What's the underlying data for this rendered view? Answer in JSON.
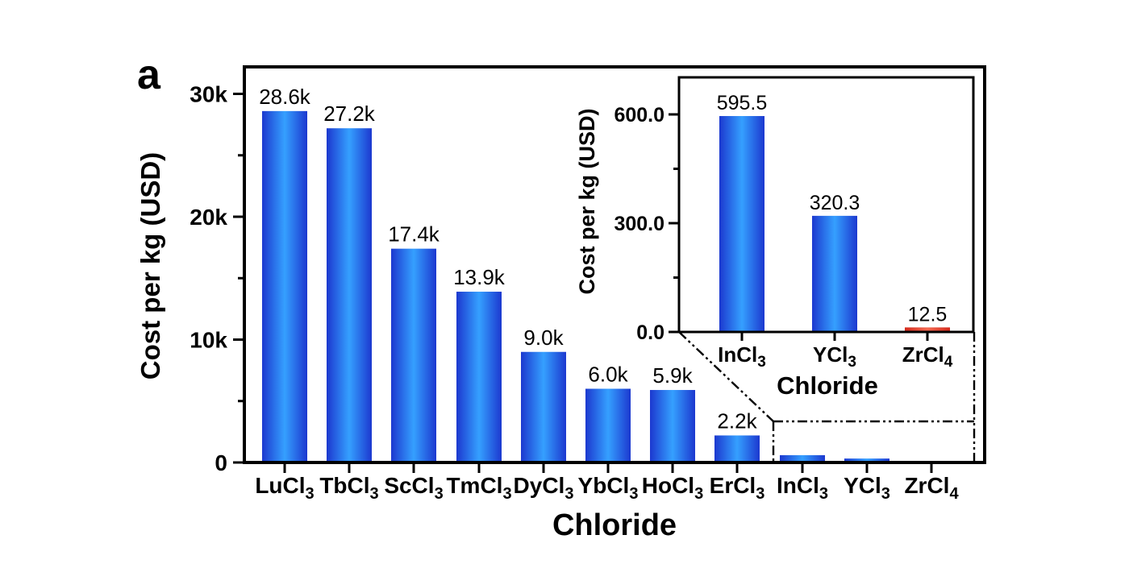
{
  "panel_label": "a",
  "colors": {
    "bar_blue_edge": "#1c38cf",
    "bar_blue_mid": "#35a0ff",
    "bar_red_edge": "#d42a1c",
    "bar_red_mid": "#f46a52",
    "label_blue": "#2847d8",
    "label_red": "#e53b2c",
    "axis_black": "#000000"
  },
  "chart_data": [
    {
      "id": "main",
      "type": "bar",
      "title": "",
      "xlabel": "Chloride",
      "ylabel": "Cost per kg (USD)",
      "ylim": [
        0,
        32200
      ],
      "grid": "off",
      "yticks": [
        {
          "value": 0,
          "label": "0"
        },
        {
          "value": 10000,
          "label": "10k"
        },
        {
          "value": 20000,
          "label": "20k"
        },
        {
          "value": 30000,
          "label": "30k"
        }
      ],
      "minor_yticks": [
        5000,
        15000,
        25000
      ],
      "categories": [
        {
          "base": "LuCl",
          "sub": "3",
          "label_color": "blue"
        },
        {
          "base": "TbCl",
          "sub": "3",
          "label_color": "blue"
        },
        {
          "base": "ScCl",
          "sub": "3",
          "label_color": "blue"
        },
        {
          "base": "TmCl",
          "sub": "3",
          "label_color": "blue"
        },
        {
          "base": "DyCl",
          "sub": "3",
          "label_color": "blue"
        },
        {
          "base": "YbCl",
          "sub": "3",
          "label_color": "blue"
        },
        {
          "base": "HoCl",
          "sub": "3",
          "label_color": "blue"
        },
        {
          "base": "ErCl",
          "sub": "3",
          "label_color": "blue"
        },
        {
          "base": "InCl",
          "sub": "3",
          "label_color": "blue"
        },
        {
          "base": "YCl",
          "sub": "3",
          "label_color": "blue"
        },
        {
          "base": "ZrCl",
          "sub": "4",
          "label_color": "red"
        }
      ],
      "values": [
        28600,
        27200,
        17400,
        13900,
        9000,
        6000,
        5900,
        2200,
        595.5,
        320.3,
        12.5
      ],
      "value_labels": [
        "28.6k",
        "27.2k",
        "17.4k",
        "13.9k",
        "9.0k",
        "6.0k",
        "5.9k",
        "2.2k",
        "",
        "",
        ""
      ],
      "value_label_colors": [
        "blue",
        "blue",
        "blue",
        "blue",
        "blue",
        "blue",
        "blue",
        "blue",
        "blue",
        "blue",
        "red"
      ],
      "bar_colors": [
        "blue",
        "blue",
        "blue",
        "blue",
        "blue",
        "blue",
        "blue",
        "blue",
        "blue",
        "blue",
        "red"
      ]
    },
    {
      "id": "inset",
      "type": "bar",
      "title": "",
      "xlabel": "Chloride",
      "ylabel": "Cost per kg (USD)",
      "ylim": [
        0,
        702
      ],
      "grid": "off",
      "yticks": [
        {
          "value": 0,
          "label": "0.0"
        },
        {
          "value": 300,
          "label": "300.0"
        },
        {
          "value": 600,
          "label": "600.0"
        }
      ],
      "minor_yticks": [
        150,
        450
      ],
      "categories": [
        {
          "base": "InCl",
          "sub": "3",
          "label_color": "black"
        },
        {
          "base": "YCl",
          "sub": "3",
          "label_color": "black"
        },
        {
          "base": "ZrCl",
          "sub": "4",
          "label_color": "red"
        }
      ],
      "values": [
        595.5,
        320.3,
        12.5
      ],
      "value_labels": [
        "595.5",
        "320.3",
        "12.5"
      ],
      "value_label_colors": [
        "blue",
        "blue",
        "red"
      ],
      "bar_colors": [
        "blue",
        "blue",
        "red"
      ]
    }
  ]
}
